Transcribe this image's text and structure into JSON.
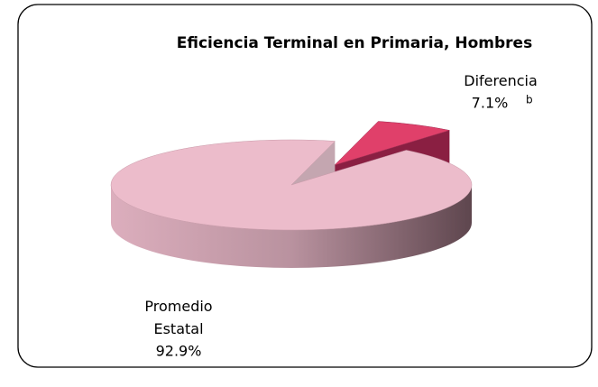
{
  "chart_data": {
    "type": "pie",
    "title": "Eficiencia Terminal en Primaria, Hombres",
    "categories": [
      "Promedio Estatal",
      "Diferencia"
    ],
    "values": [
      92.9,
      7.1
    ],
    "value_labels": [
      "92.9%",
      "7.1%"
    ],
    "footnote_marker": "b",
    "colors": [
      "#ecbccb",
      "#e0406a"
    ],
    "side_colors": [
      "#5e464e",
      "#8a1f42"
    ]
  }
}
